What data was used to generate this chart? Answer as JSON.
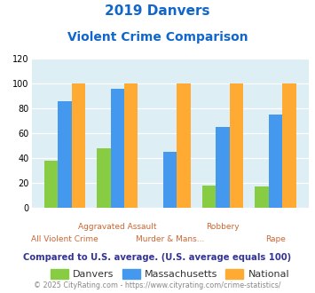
{
  "title_line1": "2019 Danvers",
  "title_line2": "Violent Crime Comparison",
  "categories": [
    "All Violent Crime",
    "Aggravated Assault",
    "Murder & Mans...",
    "Robbery",
    "Rape"
  ],
  "danvers": [
    38,
    48,
    0,
    18,
    17
  ],
  "massachusetts": [
    86,
    96,
    45,
    65,
    75
  ],
  "national": [
    100,
    100,
    100,
    100,
    100
  ],
  "colors": {
    "danvers": "#88cc44",
    "massachusetts": "#4499ee",
    "national": "#ffaa33"
  },
  "ylim": [
    0,
    120
  ],
  "yticks": [
    0,
    20,
    40,
    60,
    80,
    100,
    120
  ],
  "footer_note": "Compared to U.S. average. (U.S. average equals 100)",
  "footer_credit": "© 2025 CityRating.com - https://www.cityrating.com/crime-statistics/",
  "title_color": "#1166cc",
  "x_label_color": "#cc6633",
  "footer_note_color": "#333399",
  "footer_credit_color": "#888888",
  "footer_url_color": "#4499ee",
  "bg_color": "#ddeef5",
  "legend_labels": [
    "Danvers",
    "Massachusetts",
    "National"
  ],
  "legend_text_color": "#333333"
}
